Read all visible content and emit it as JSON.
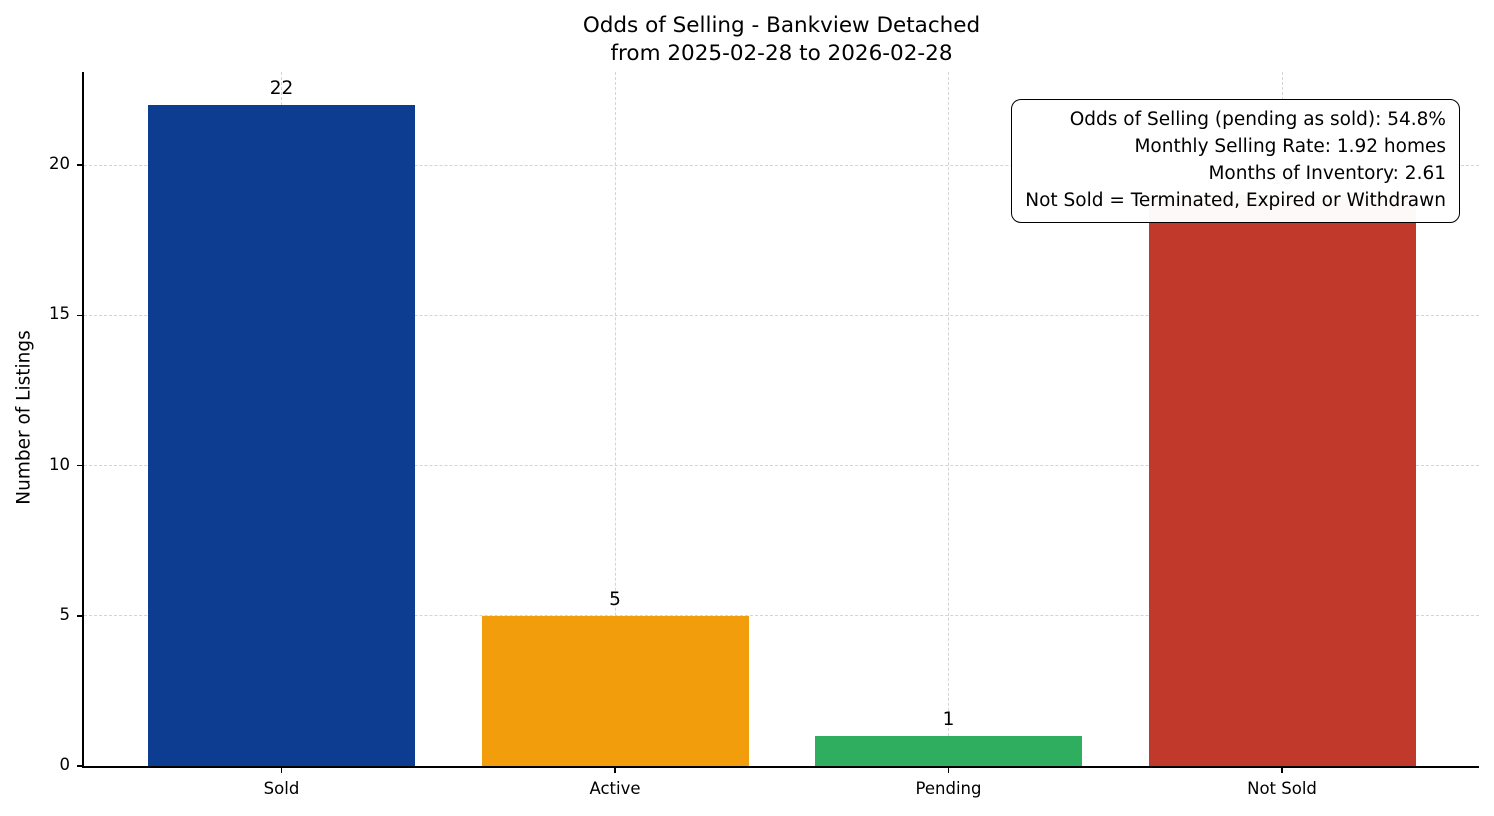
{
  "chart_data": {
    "type": "bar",
    "title": "Odds of Selling - Bankview Detached",
    "subtitle": "from 2025-02-28 to 2026-02-28",
    "categories": [
      "Sold",
      "Active",
      "Pending",
      "Not Sold"
    ],
    "values": [
      22,
      5,
      1,
      19
    ],
    "bar_colors": [
      "#0d3d91",
      "#f29e0c",
      "#2fae60",
      "#c0392b"
    ],
    "xlabel": "",
    "ylabel": "Number of Listings",
    "ylim": [
      0,
      23.1
    ],
    "yticks": [
      0,
      5,
      10,
      15,
      20
    ],
    "grid": "dashed, both axes",
    "legend_position": "none",
    "annotation": {
      "lines": [
        "Odds of Selling (pending as sold): 54.8%",
        "Monthly Selling Rate: 1.92 homes",
        "Months of Inventory: 2.61",
        "Not Sold = Terminated, Expired or Withdrawn"
      ]
    }
  }
}
